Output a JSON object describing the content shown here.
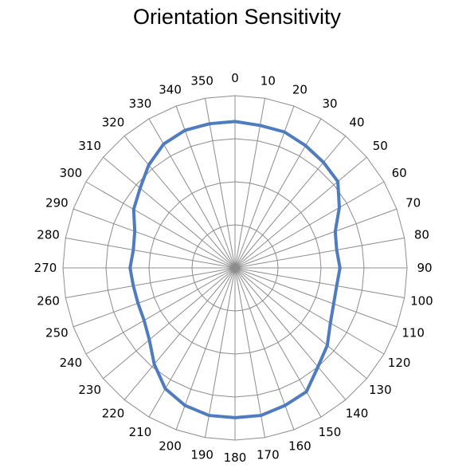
{
  "chart_data": {
    "type": "radar",
    "title": "Orientation Sensitivity",
    "angle_labels": [
      "0",
      "10",
      "20",
      "30",
      "40",
      "50",
      "60",
      "70",
      "80",
      "90",
      "100",
      "110",
      "120",
      "130",
      "140",
      "150",
      "160",
      "170",
      "180",
      "190",
      "200",
      "210",
      "220",
      "230",
      "240",
      "250",
      "260",
      "270",
      "280",
      "290",
      "300",
      "310",
      "320",
      "330",
      "340",
      "350"
    ],
    "radial_range": [
      0,
      1
    ],
    "radial_rings": [
      0.25,
      0.5,
      0.75,
      1.0
    ],
    "grid": true,
    "series": [
      {
        "color": "#4F7BBF",
        "values": [
          0.85,
          0.84,
          0.84,
          0.82,
          0.8,
          0.78,
          0.7,
          0.62,
          0.6,
          0.61,
          0.6,
          0.61,
          0.64,
          0.7,
          0.75,
          0.83,
          0.85,
          0.87,
          0.87,
          0.87,
          0.85,
          0.81,
          0.73,
          0.65,
          0.61,
          0.6,
          0.6,
          0.61,
          0.6,
          0.62,
          0.68,
          0.72,
          0.78,
          0.83,
          0.85,
          0.85
        ]
      }
    ]
  }
}
